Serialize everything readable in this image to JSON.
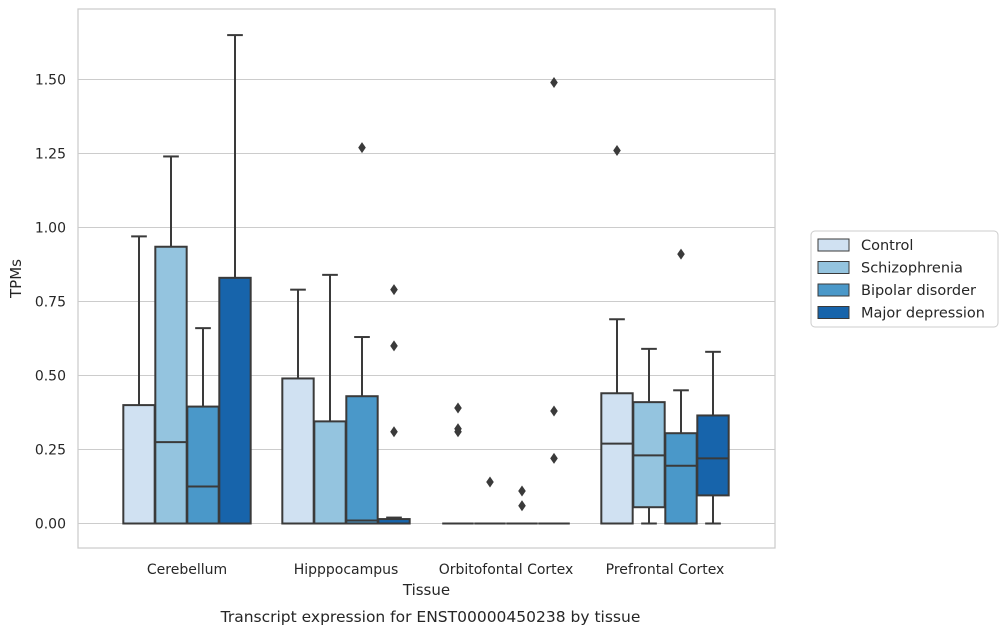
{
  "chart_data": {
    "type": "box",
    "caption": "Transcript expression for ENST00000450238 by tissue",
    "xlabel": "Tissue",
    "ylabel": "TPMs",
    "ylim": [
      -0.08,
      1.74
    ],
    "yticks": [
      "0.00",
      "0.25",
      "0.50",
      "0.75",
      "1.00",
      "1.25",
      "1.50"
    ],
    "grid": "horizontal",
    "legend_position": "right",
    "categories": [
      "Cerebellum",
      "Hipppocampus",
      "Orbitofontal Cortex",
      "Prefrontal Cortex"
    ],
    "series": [
      {
        "name": "Control",
        "color": "#d0e1f2",
        "boxes": [
          {
            "q1": 0.0,
            "median": 0.0,
            "q3": 0.4,
            "whisker_low": 0.0,
            "whisker_high": 0.97,
            "outliers": []
          },
          {
            "q1": 0.0,
            "median": 0.0,
            "q3": 0.49,
            "whisker_low": 0.0,
            "whisker_high": 0.79,
            "outliers": []
          },
          {
            "q1": 0.0,
            "median": 0.0,
            "q3": 0.0,
            "whisker_low": 0.0,
            "whisker_high": 0.0,
            "outliers": [
              0.39,
              0.32,
              0.31
            ]
          },
          {
            "q1": 0.0,
            "median": 0.27,
            "q3": 0.44,
            "whisker_low": 0.0,
            "whisker_high": 0.69,
            "outliers": [
              1.26
            ]
          }
        ]
      },
      {
        "name": "Schizophrenia",
        "color": "#94c4df",
        "boxes": [
          {
            "q1": 0.0,
            "median": 0.275,
            "q3": 0.935,
            "whisker_low": 0.0,
            "whisker_high": 1.24,
            "outliers": []
          },
          {
            "q1": 0.0,
            "median": 0.0,
            "q3": 0.345,
            "whisker_low": 0.0,
            "whisker_high": 0.84,
            "outliers": []
          },
          {
            "q1": 0.0,
            "median": 0.0,
            "q3": 0.0,
            "whisker_low": 0.0,
            "whisker_high": 0.0,
            "outliers": [
              0.14
            ]
          },
          {
            "q1": 0.055,
            "median": 0.23,
            "q3": 0.41,
            "whisker_low": 0.0,
            "whisker_high": 0.59,
            "outliers": []
          }
        ]
      },
      {
        "name": "Bipolar disorder",
        "color": "#4a98c9",
        "boxes": [
          {
            "q1": 0.0,
            "median": 0.125,
            "q3": 0.395,
            "whisker_low": 0.0,
            "whisker_high": 0.66,
            "outliers": []
          },
          {
            "q1": 0.0,
            "median": 0.01,
            "q3": 0.43,
            "whisker_low": 0.0,
            "whisker_high": 0.63,
            "outliers": [
              1.27
            ]
          },
          {
            "q1": 0.0,
            "median": 0.0,
            "q3": 0.0,
            "whisker_low": 0.0,
            "whisker_high": 0.0,
            "outliers": [
              0.11,
              0.06
            ]
          },
          {
            "q1": 0.0,
            "median": 0.195,
            "q3": 0.305,
            "whisker_low": 0.0,
            "whisker_high": 0.45,
            "outliers": [
              0.91
            ]
          }
        ]
      },
      {
        "name": "Major depression",
        "color": "#1764ab",
        "boxes": [
          {
            "q1": 0.0,
            "median": 0.0,
            "q3": 0.83,
            "whisker_low": 0.0,
            "whisker_high": 1.65,
            "outliers": []
          },
          {
            "q1": 0.0,
            "median": 0.0,
            "q3": 0.015,
            "whisker_low": 0.0,
            "whisker_high": 0.02,
            "outliers": [
              0.79,
              0.6,
              0.31
            ]
          },
          {
            "q1": 0.0,
            "median": 0.0,
            "q3": 0.0,
            "whisker_low": 0.0,
            "whisker_high": 0.0,
            "outliers": [
              1.49,
              0.38,
              0.22
            ]
          },
          {
            "q1": 0.095,
            "median": 0.22,
            "q3": 0.365,
            "whisker_low": 0.0,
            "whisker_high": 0.58,
            "outliers": []
          }
        ]
      }
    ]
  }
}
